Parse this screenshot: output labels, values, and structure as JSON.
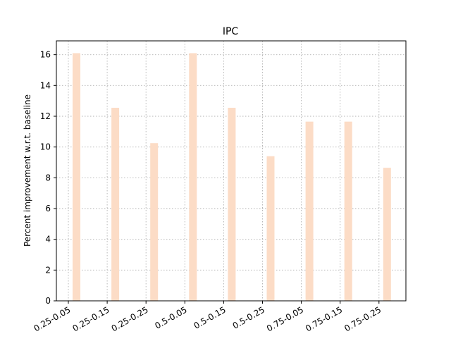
{
  "chart_data": {
    "type": "bar",
    "title": "IPC",
    "xlabel": "",
    "ylabel": "Percent improvement w.r.t. baseline",
    "categories": [
      "0.25-0.05",
      "0.25-0.15",
      "0.25-0.25",
      "0.5-0.05",
      "0.5-0.15",
      "0.5-0.25",
      "0.75-0.05",
      "0.75-0.15",
      "0.75-0.25"
    ],
    "values": [
      16.1,
      12.55,
      10.25,
      16.1,
      12.55,
      9.4,
      11.65,
      11.65,
      8.65
    ],
    "ylim": [
      0,
      16.9
    ],
    "yticks": [
      0,
      2,
      4,
      6,
      8,
      10,
      12,
      14,
      16
    ],
    "grid": true,
    "legend": "none",
    "colors": {
      "bar": "#fcdcc6",
      "grid": "#b0b0b0",
      "axis": "#000000"
    }
  }
}
